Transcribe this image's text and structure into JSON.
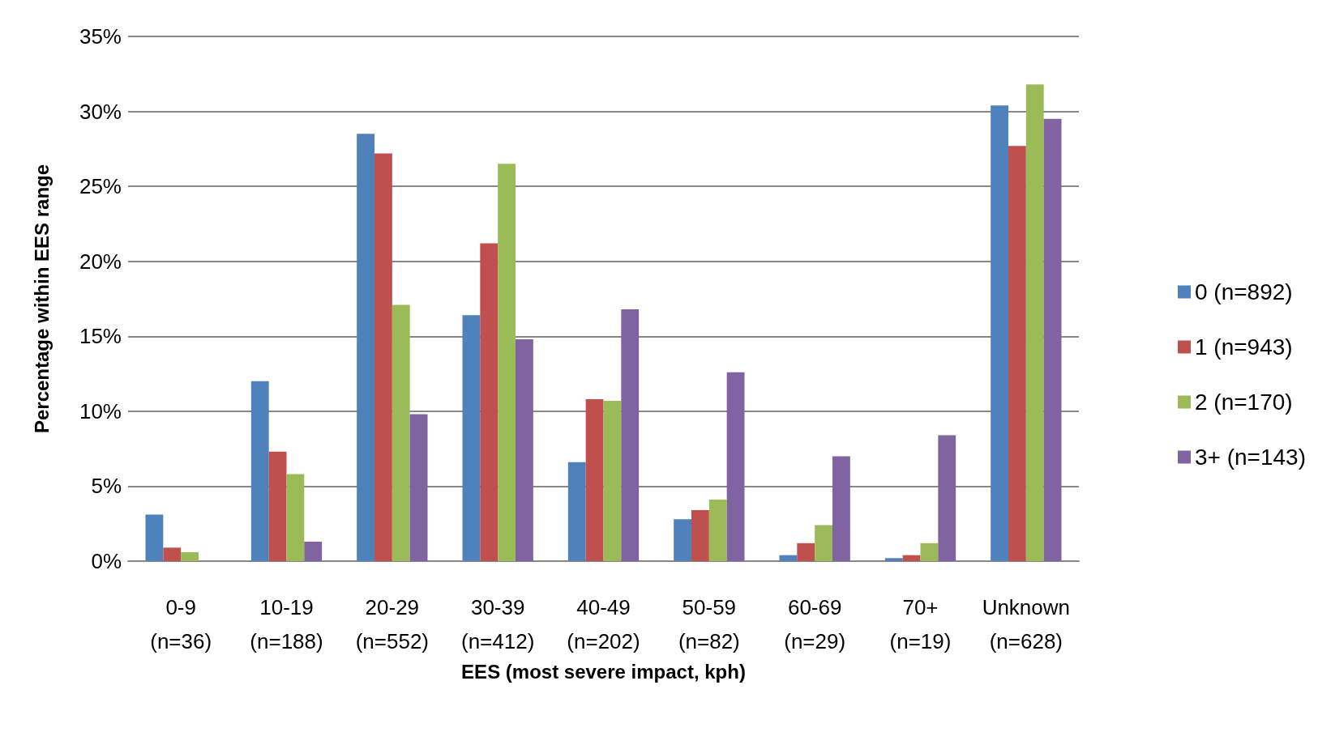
{
  "chart_data": {
    "type": "bar",
    "xlabel": "EES (most severe impact, kph)",
    "ylabel": "Percentage within EES range",
    "categories": [
      "0-9\n(n=36)",
      "10-19\n(n=188)",
      "20-29\n(n=552)",
      "30-39\n(n=412)",
      "40-49\n(n=202)",
      "50-59\n(n=82)",
      "60-69\n(n=29)",
      "70+\n(n=19)",
      "Unknown\n(n=628)"
    ],
    "series": [
      {
        "name": "0 (n=892)",
        "color": "#4f81bd",
        "values": [
          3.1,
          12.0,
          28.5,
          16.4,
          6.6,
          2.8,
          0.4,
          0.2,
          30.4
        ]
      },
      {
        "name": "1 (n=943)",
        "color": "#c0504d",
        "values": [
          0.9,
          7.3,
          27.2,
          21.2,
          10.8,
          3.4,
          1.2,
          0.4,
          27.7
        ]
      },
      {
        "name": "2 (n=170)",
        "color": "#9bbb59",
        "values": [
          0.6,
          5.8,
          17.1,
          26.5,
          10.7,
          4.1,
          2.4,
          1.2,
          31.8
        ]
      },
      {
        "name": "3+ (n=143)",
        "color": "#8064a2",
        "values": [
          0,
          1.3,
          9.8,
          14.8,
          16.8,
          12.6,
          7.0,
          8.4,
          29.5
        ]
      }
    ],
    "ylim": [
      0,
      35
    ],
    "yticks": [
      {
        "value": 0,
        "label": "0%"
      },
      {
        "value": 5,
        "label": "5%"
      },
      {
        "value": 10,
        "label": "10%"
      },
      {
        "value": 15,
        "label": "15%"
      },
      {
        "value": 20,
        "label": "20%"
      },
      {
        "value": 25,
        "label": "25%"
      },
      {
        "value": 30,
        "label": "30%"
      },
      {
        "value": 35,
        "label": "35%"
      }
    ],
    "grid": "y",
    "legend": "right"
  }
}
